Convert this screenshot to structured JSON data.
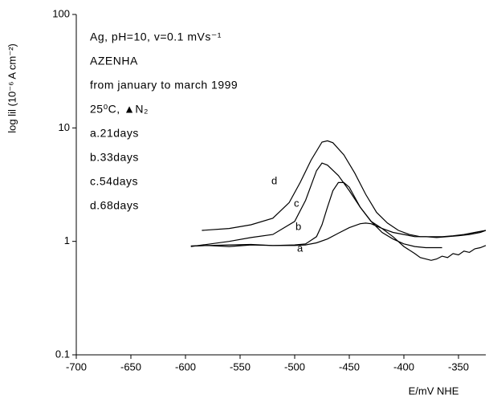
{
  "chart_data": {
    "type": "line",
    "xlabel": "E/mV NHE",
    "ylabel": "log lil (10⁻⁶ A   cm⁻²)",
    "annotations": [
      "Ag, pH=10, v=0.1 mVs⁻¹",
      "AZENHA",
      "from january to march 1999",
      "25⁰C, ▲N₂",
      "a.21days",
      "b.33days",
      "c.54days",
      "d.68days"
    ],
    "xlim": [
      -700,
      -325
    ],
    "xticks": [
      -700,
      -650,
      -600,
      -550,
      -500,
      -450,
      -400,
      -350
    ],
    "ylim": [
      0.1,
      100
    ],
    "yticks": [
      0.1,
      1,
      10,
      100
    ],
    "yscale": "log",
    "series": [
      {
        "name": "a",
        "color": "#000000",
        "x": [
          -595,
          -580,
          -560,
          -540,
          -520,
          -500,
          -490,
          -480,
          -470,
          -460,
          -450,
          -440,
          -435,
          -430,
          -420,
          -410,
          -400,
          -390,
          -385,
          -380,
          -375,
          -370,
          -365,
          -360,
          -355,
          -350,
          -345,
          -340,
          -335,
          -330,
          -325
        ],
        "values": [
          0.91,
          0.92,
          0.93,
          0.94,
          0.92,
          0.92,
          0.93,
          0.97,
          1.05,
          1.18,
          1.32,
          1.43,
          1.45,
          1.43,
          1.3,
          1.1,
          0.9,
          0.78,
          0.72,
          0.7,
          0.68,
          0.7,
          0.74,
          0.72,
          0.78,
          0.76,
          0.82,
          0.8,
          0.86,
          0.88,
          0.92
        ]
      },
      {
        "name": "b",
        "color": "#000000",
        "x": [
          -595,
          -580,
          -560,
          -540,
          -520,
          -500,
          -490,
          -480,
          -475,
          -470,
          -465,
          -460,
          -455,
          -450,
          -440,
          -430,
          -420,
          -410,
          -400,
          -390,
          -380,
          -370,
          -360,
          -350,
          -340,
          -330,
          -325
        ],
        "values": [
          0.91,
          0.92,
          0.9,
          0.93,
          0.92,
          0.93,
          0.95,
          1.1,
          1.4,
          2.0,
          2.8,
          3.3,
          3.3,
          3.0,
          2.0,
          1.5,
          1.3,
          1.2,
          1.15,
          1.1,
          1.1,
          1.08,
          1.1,
          1.12,
          1.15,
          1.2,
          1.25
        ]
      },
      {
        "name": "c",
        "color": "#000000",
        "x": [
          -595,
          -560,
          -540,
          -520,
          -500,
          -490,
          -480,
          -475,
          -470,
          -460,
          -450,
          -440,
          -430,
          -420,
          -410,
          -400,
          -390,
          -380,
          -370,
          -365
        ],
        "values": [
          0.9,
          1.0,
          1.08,
          1.15,
          1.5,
          2.3,
          4.2,
          4.9,
          4.7,
          3.8,
          2.8,
          2.0,
          1.5,
          1.2,
          1.05,
          0.95,
          0.9,
          0.88,
          0.88,
          0.88
        ]
      },
      {
        "name": "d",
        "color": "#000000",
        "x": [
          -585,
          -560,
          -540,
          -520,
          -505,
          -495,
          -485,
          -475,
          -470,
          -465,
          -455,
          -445,
          -435,
          -425,
          -415,
          -405,
          -395,
          -385,
          -375,
          -365,
          -355,
          -345,
          -335,
          -325
        ],
        "values": [
          1.25,
          1.3,
          1.4,
          1.6,
          2.2,
          3.3,
          5.2,
          7.5,
          7.7,
          7.4,
          5.8,
          4.0,
          2.6,
          1.8,
          1.45,
          1.25,
          1.15,
          1.1,
          1.1,
          1.1,
          1.12,
          1.15,
          1.2,
          1.25
        ]
      }
    ]
  }
}
